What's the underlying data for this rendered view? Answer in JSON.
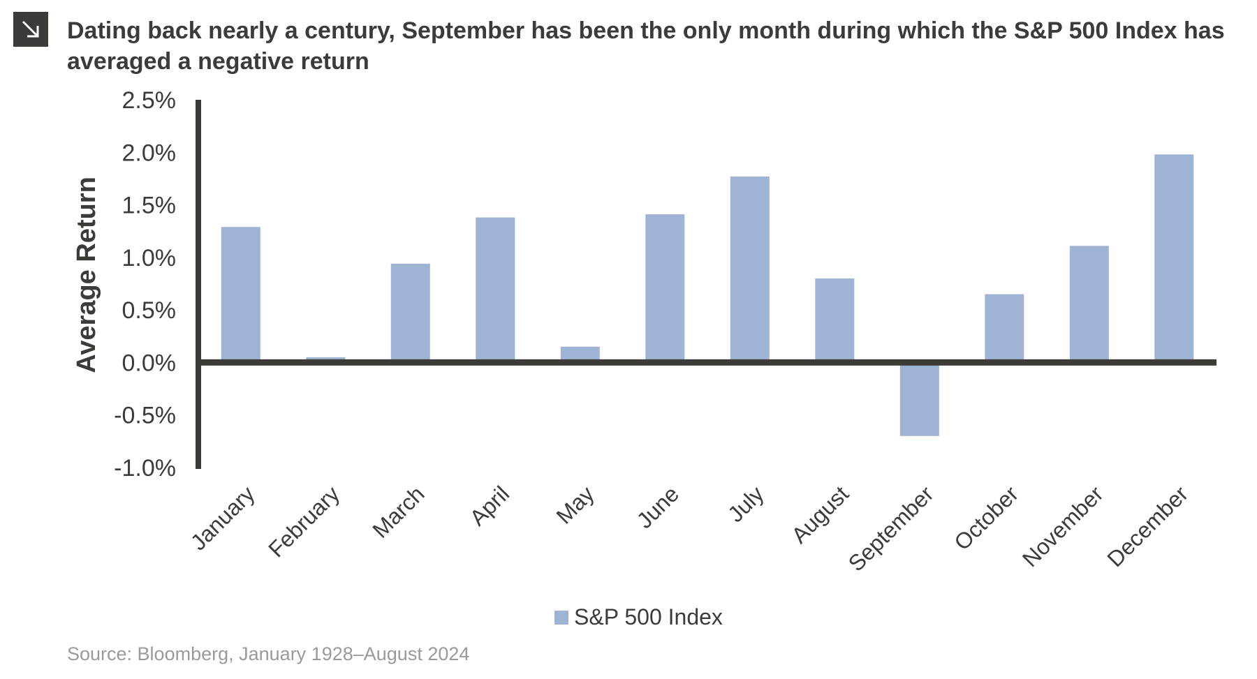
{
  "header": {
    "title": "Dating back nearly a century, September has been the only month during which the S&P 500 Index has averaged a negative return",
    "icon": "arrow-down-right-icon"
  },
  "footer": {
    "source": "Source: Bloomberg, January 1928–August 2024"
  },
  "chart_data": {
    "type": "bar",
    "title": "Dating back nearly a century, September has been the only month during which the S&P 500 Index has averaged a negative return",
    "categories": [
      "January",
      "February",
      "March",
      "April",
      "May",
      "June",
      "July",
      "August",
      "September",
      "October",
      "November",
      "December"
    ],
    "series": [
      {
        "name": "S&P 500 Index",
        "color": "#9fb3d4",
        "values": [
          1.29,
          0.05,
          0.94,
          1.38,
          0.15,
          1.41,
          1.77,
          0.8,
          -0.7,
          0.65,
          1.11,
          1.98
        ]
      }
    ],
    "ylabel": "Average Return",
    "xlabel": "",
    "ylim": [
      -1.0,
      2.5
    ],
    "yticks": [
      2.5,
      2.0,
      1.5,
      1.0,
      0.5,
      0.0,
      -0.5,
      -1.0
    ],
    "ytick_labels": [
      "2.5%",
      "2.0%",
      "1.5%",
      "1.0%",
      "0.5%",
      "0.0%",
      "-0.5%",
      "-1.0%"
    ],
    "grid": false,
    "legend_position": "bottom-center",
    "axis_color": "#3d3b38"
  }
}
